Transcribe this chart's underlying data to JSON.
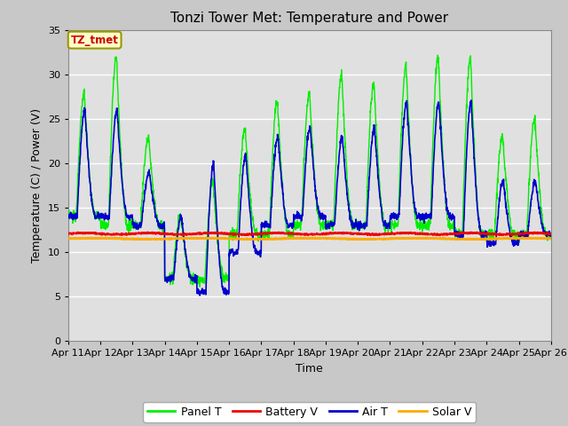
{
  "title": "Tonzi Tower Met: Temperature and Power",
  "xlabel": "Time",
  "ylabel": "Temperature (C) / Power (V)",
  "xlim": [
    0,
    15
  ],
  "ylim": [
    0,
    35
  ],
  "yticks": [
    0,
    5,
    10,
    15,
    20,
    25,
    30,
    35
  ],
  "xtick_labels": [
    "Apr 11",
    "Apr 12",
    "Apr 13",
    "Apr 14",
    "Apr 15",
    "Apr 16",
    "Apr 17",
    "Apr 18",
    "Apr 19",
    "Apr 20",
    "Apr 21",
    "Apr 22",
    "Apr 23",
    "Apr 24",
    "Apr 25",
    "Apr 26"
  ],
  "annotation_text": "TZ_tmet",
  "annotation_bg": "#ffffcc",
  "annotation_border": "#999900",
  "annotation_textcolor": "#cc0000",
  "colors": {
    "panel_t": "#00ee00",
    "battery_v": "#ee0000",
    "air_t": "#0000cc",
    "solar_v": "#ffaa00"
  },
  "legend_labels": [
    "Panel T",
    "Battery V",
    "Air T",
    "Solar V"
  ],
  "fig_bg": "#c8c8c8",
  "plot_bg": "#e0e0e0",
  "grid_color": "#ffffff",
  "title_fontsize": 11,
  "label_fontsize": 9,
  "tick_fontsize": 8
}
